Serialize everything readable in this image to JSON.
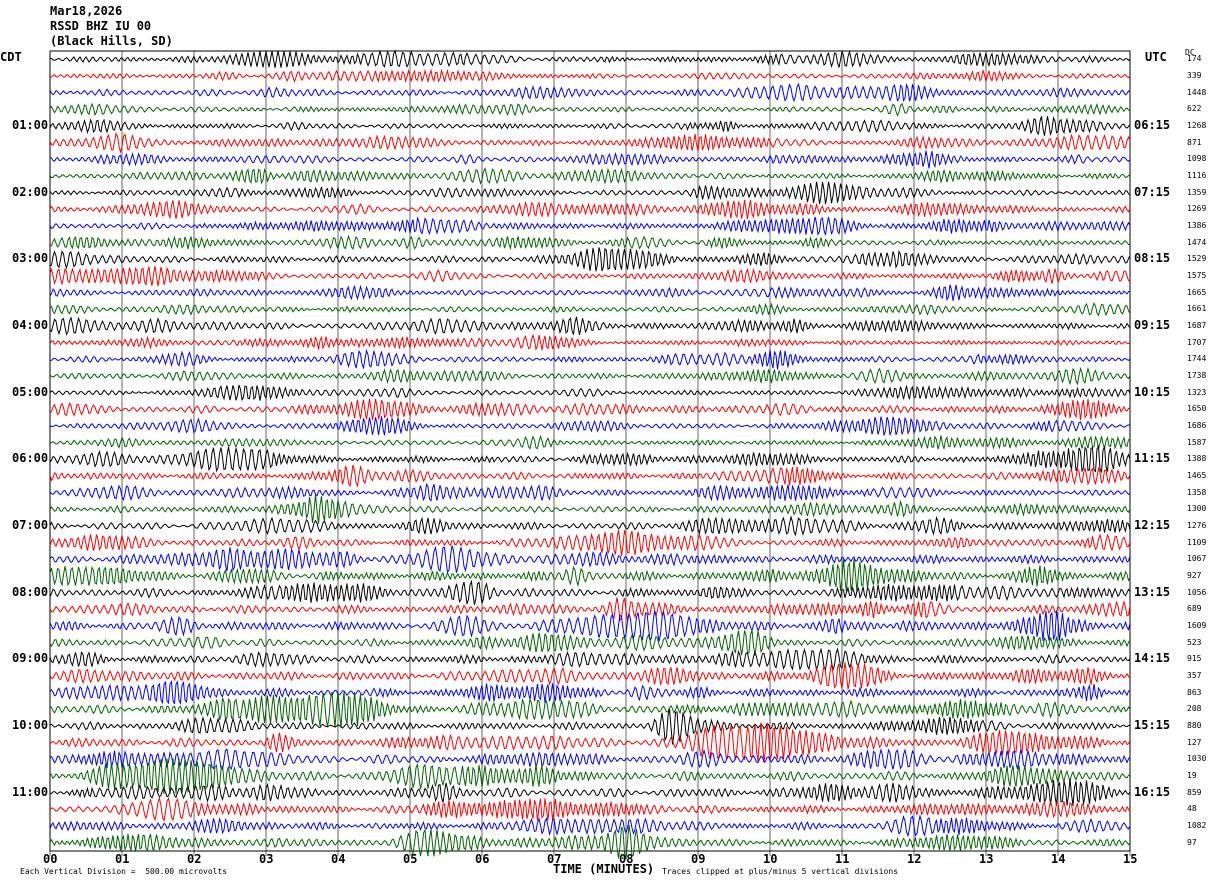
{
  "header": {
    "date": "Mar18,2026",
    "station": "RSSD BHZ IU 00",
    "location": "(Black Hills, SD)"
  },
  "chart_data": {
    "type": "line",
    "title": "RSSD BHZ IU 00",
    "left_axis_label": "CDT",
    "right_axis_label": "UTC",
    "dc_label": "DC",
    "xlabel": "TIME (MINUTES)",
    "x_ticks": [
      "00",
      "01",
      "02",
      "03",
      "04",
      "05",
      "06",
      "07",
      "08",
      "09",
      "10",
      "11",
      "12",
      "13",
      "14",
      "15"
    ],
    "xlim": [
      0,
      15
    ],
    "trace_colors": [
      "#000000",
      "#ff0000",
      "#0000ff",
      "#006400"
    ],
    "trace_count": 48,
    "rows_per_hour": 4,
    "left_hour_labels": [
      "01:00",
      "02:00",
      "03:00",
      "04:00",
      "05:00",
      "06:00",
      "07:00",
      "08:00",
      "09:00",
      "10:00",
      "11:00"
    ],
    "right_hour_labels": [
      "06:15",
      "07:15",
      "08:15",
      "09:15",
      "10:15",
      "11:15",
      "12:15",
      "13:15",
      "14:15",
      "15:15",
      "16:15"
    ],
    "dc_offsets": [
      "174",
      "339",
      "1448",
      "622",
      "1268",
      "871",
      "1098",
      "1116",
      "1359",
      "1269",
      "1386",
      "1474",
      "1529",
      "1575",
      "1665",
      "1661",
      "1687",
      "1707",
      "1744",
      "1738",
      "1323",
      "1650",
      "1686",
      "1587",
      "1388",
      "1465",
      "1358",
      "1300",
      "1276",
      "1109",
      "1067",
      "927",
      "1056",
      "689",
      "1609",
      "523",
      "915",
      "357",
      "863",
      "208",
      "880",
      "127",
      "1030",
      "19",
      "859",
      "48",
      "1082",
      "97"
    ],
    "footer_left": "Each Vertical Division =  500.00 microvolts",
    "footer_right": "Traces clipped at plus/minus 5 vertical divisions"
  }
}
